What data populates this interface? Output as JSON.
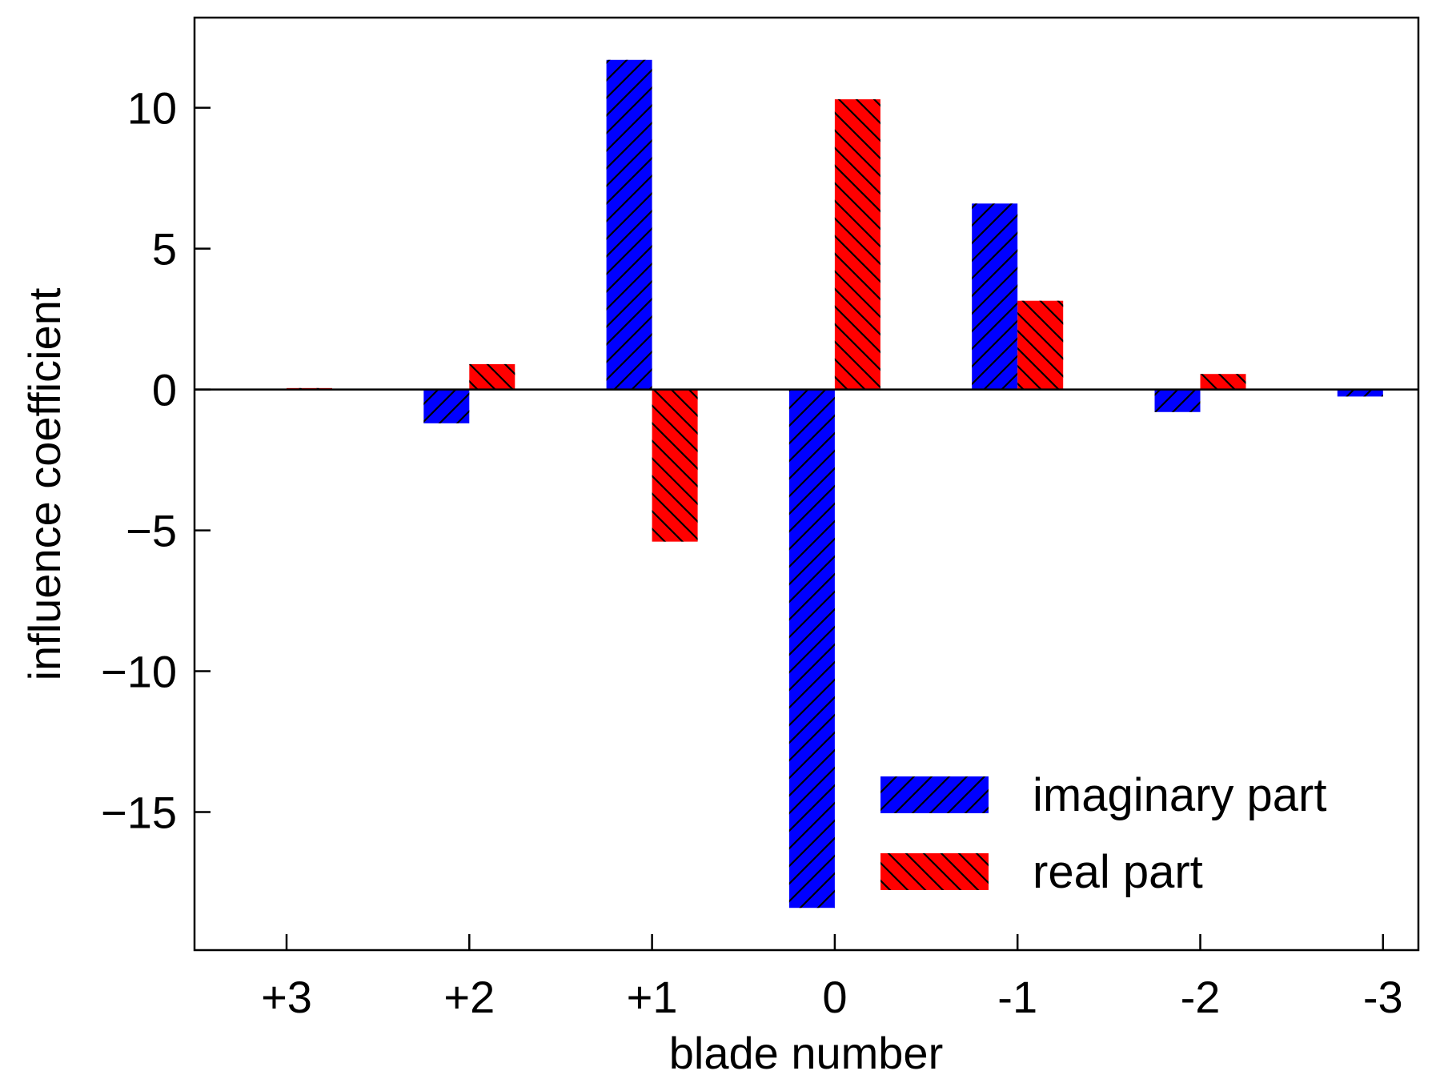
{
  "chart_data": {
    "type": "bar",
    "title": "",
    "xlabel": "blade number",
    "ylabel": "influence coefficient",
    "categories": [
      "+3",
      "+2",
      "+1",
      "0",
      "-1",
      "-2",
      "-3"
    ],
    "series": [
      {
        "name": "imaginary part",
        "color": "#0000ff",
        "hatch": "forward-diagonal",
        "values": [
          0.0,
          -1.2,
          11.7,
          -18.4,
          6.6,
          -0.8,
          -0.25
        ]
      },
      {
        "name": "real part",
        "color": "#ff0000",
        "hatch": "back-diagonal",
        "values": [
          0.05,
          0.9,
          -5.4,
          10.3,
          3.15,
          0.55,
          0.0
        ]
      }
    ],
    "ylim": [
      -19.9,
      13.2
    ],
    "yticks": [
      10,
      5,
      0,
      -5,
      -10,
      -15
    ],
    "ytick_labels": [
      "10",
      "5",
      "0",
      "−5",
      "−10",
      "−15"
    ],
    "grid": false,
    "legend_position": "bottom-right",
    "zero_line": true
  }
}
